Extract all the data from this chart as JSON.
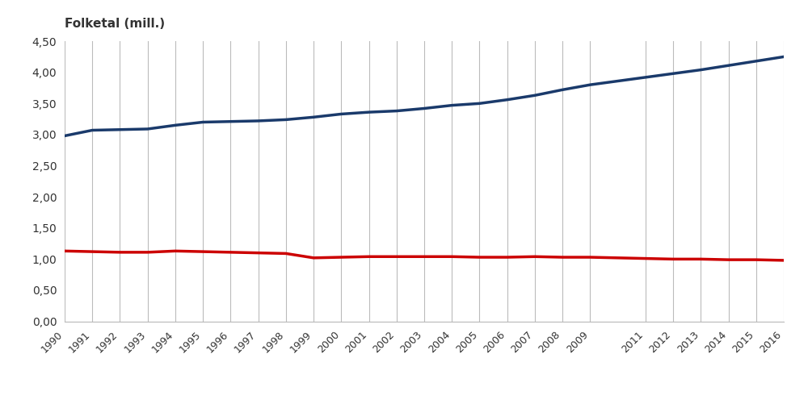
{
  "years": [
    1990,
    1991,
    1992,
    1993,
    1994,
    1995,
    1996,
    1997,
    1998,
    1999,
    2000,
    2001,
    2002,
    2003,
    2004,
    2005,
    2006,
    2007,
    2008,
    2009,
    2011,
    2012,
    2013,
    2014,
    2015,
    2016
  ],
  "i_tettstader": [
    2.98,
    3.07,
    3.08,
    3.09,
    3.15,
    3.2,
    3.21,
    3.22,
    3.24,
    3.28,
    3.33,
    3.36,
    3.38,
    3.42,
    3.47,
    3.5,
    3.56,
    3.63,
    3.72,
    3.8,
    3.92,
    3.98,
    4.04,
    4.11,
    4.18,
    4.25
  ],
  "utanfor_tettstader": [
    1.13,
    1.12,
    1.11,
    1.11,
    1.13,
    1.12,
    1.11,
    1.1,
    1.09,
    1.02,
    1.03,
    1.04,
    1.04,
    1.04,
    1.04,
    1.03,
    1.03,
    1.04,
    1.03,
    1.03,
    1.01,
    1.0,
    1.0,
    0.99,
    0.99,
    0.98
  ],
  "line_color_i": "#1a3a6b",
  "line_color_utanfor": "#cc0000",
  "ylabel": "Folketal (mill.)",
  "ylim_min": 0.0,
  "ylim_max": 4.5,
  "yticks": [
    0.0,
    0.5,
    1.0,
    1.5,
    2.0,
    2.5,
    3.0,
    3.5,
    4.0,
    4.5
  ],
  "ytick_labels": [
    "0,00",
    "0,50",
    "1,00",
    "1,50",
    "2,00",
    "2,50",
    "3,00",
    "3,50",
    "4,00",
    "4,50"
  ],
  "background_color": "#ffffff",
  "grid_color": "#bbbbbb",
  "line_width": 2.5,
  "font_color": "#333333"
}
